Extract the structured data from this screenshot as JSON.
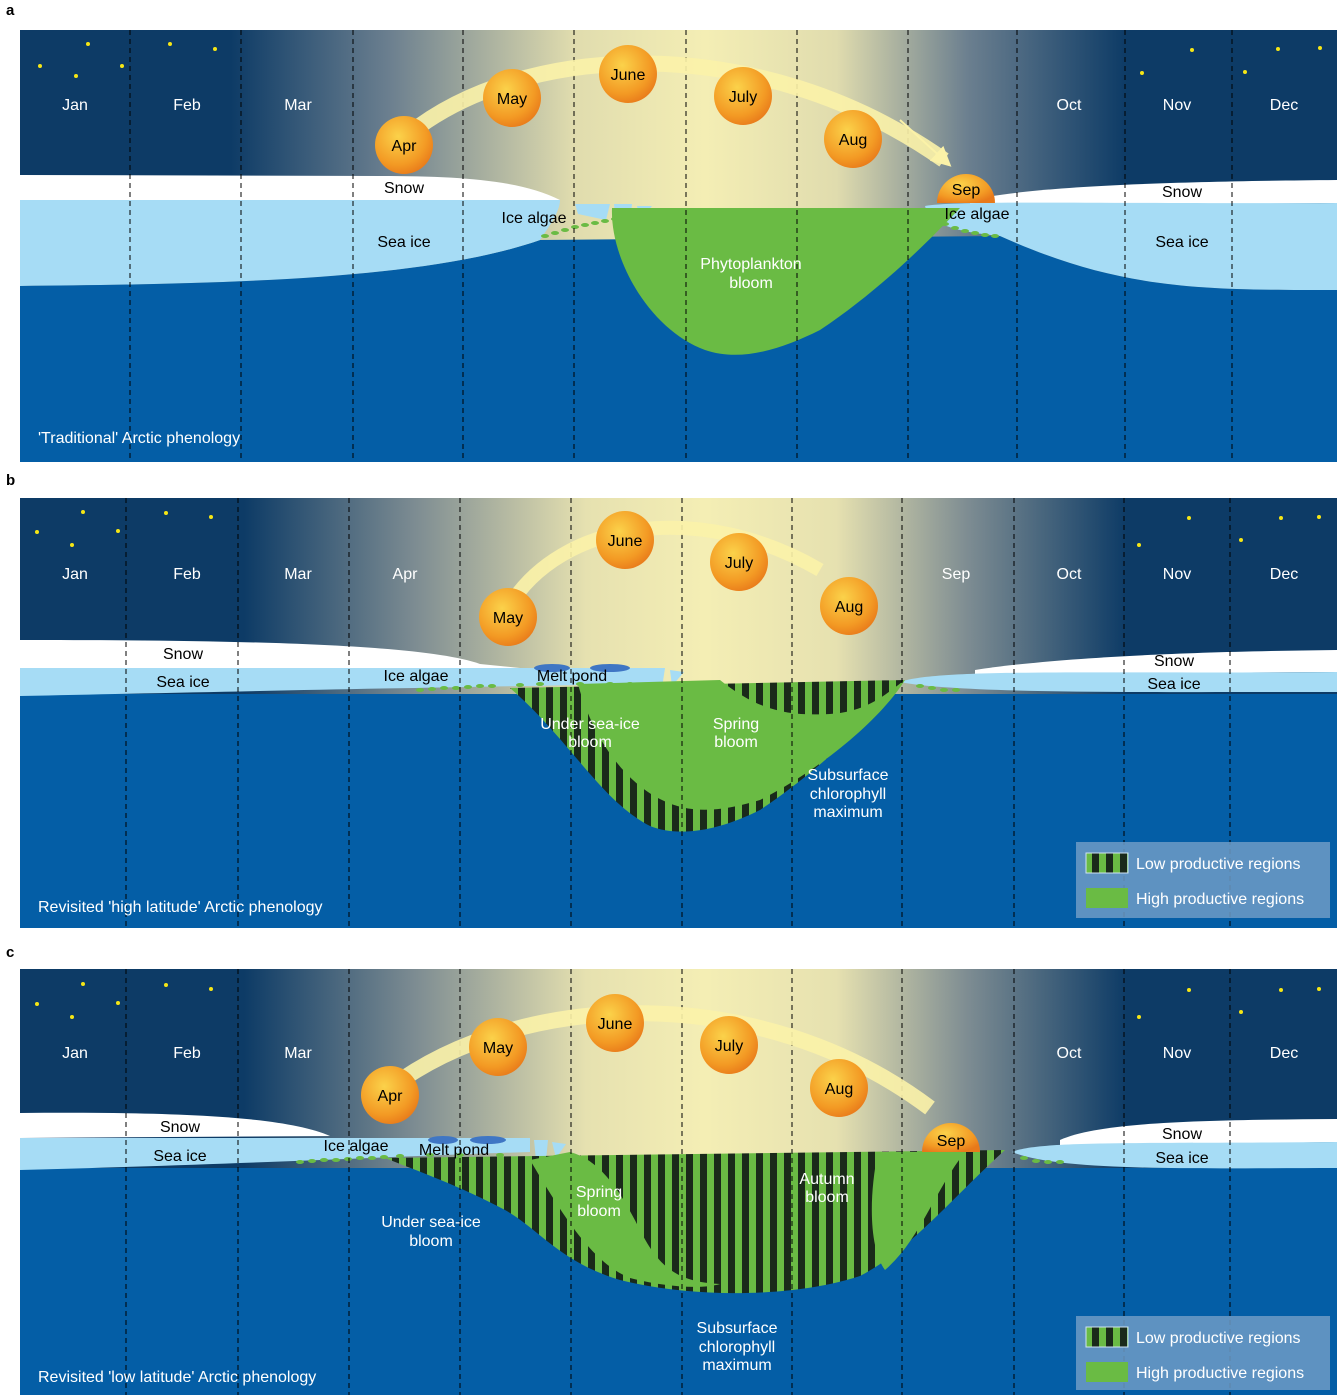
{
  "colors": {
    "night": "#0d3b66",
    "day": "#f4eeb4",
    "ocean": "#045ea6",
    "sea_ice": "#a6dcf5",
    "snow": "#ffffff",
    "bloom": "#6abb44",
    "stripe_dark": "#1a2a1a",
    "sun": "#f08c1e",
    "sun_path": "#fbf2a8",
    "star": "#f6e616",
    "legend_bg": "#6f9bc5"
  },
  "months": [
    "Jan",
    "Feb",
    "Mar",
    "Apr",
    "May",
    "June",
    "July",
    "Aug",
    "Sep",
    "Oct",
    "Nov",
    "Dec"
  ],
  "panels": [
    {
      "letter": "a",
      "caption": "'Traditional' Arctic phenology",
      "labels": {
        "snow_left": "Snow",
        "snow_right": "Snow",
        "sea_ice_left": "Sea ice",
        "sea_ice_right": "Sea ice",
        "ice_algae_left": "Ice algae",
        "ice_algae_right": "Ice algae",
        "phyto_line1": "Phytoplankton",
        "phyto_line2": "bloom"
      }
    },
    {
      "letter": "b",
      "caption": "Revisited 'high latitude' Arctic phenology",
      "labels": {
        "snow_left": "Snow",
        "snow_right": "Snow",
        "sea_ice_left": "Sea ice",
        "sea_ice_right": "Sea ice",
        "ice_algae": "Ice algae",
        "melt_pond": "Melt pond",
        "under_line1": "Under sea-ice",
        "under_line2": "bloom",
        "spring_line1": "Spring",
        "spring_line2": "bloom",
        "scm_line1": "Subsurface",
        "scm_line2": "chlorophyll",
        "scm_line3": "maximum"
      }
    },
    {
      "letter": "c",
      "caption": "Revisited 'low latitude' Arctic phenology",
      "labels": {
        "snow_left": "Snow",
        "snow_right": "Snow",
        "sea_ice_left": "Sea ice",
        "sea_ice_right": "Sea ice",
        "ice_algae": "Ice algae",
        "melt_pond": "Melt pond",
        "under_line1": "Under sea-ice",
        "under_line2": "bloom",
        "spring_line1": "Spring",
        "spring_line2": "bloom",
        "autumn_line1": "Autumn",
        "autumn_line2": "bloom",
        "scm_line1": "Subsurface",
        "scm_line2": "chlorophyll",
        "scm_line3": "maximum"
      }
    }
  ],
  "legend": {
    "low": "Low productive regions",
    "high": "High productive regions"
  }
}
